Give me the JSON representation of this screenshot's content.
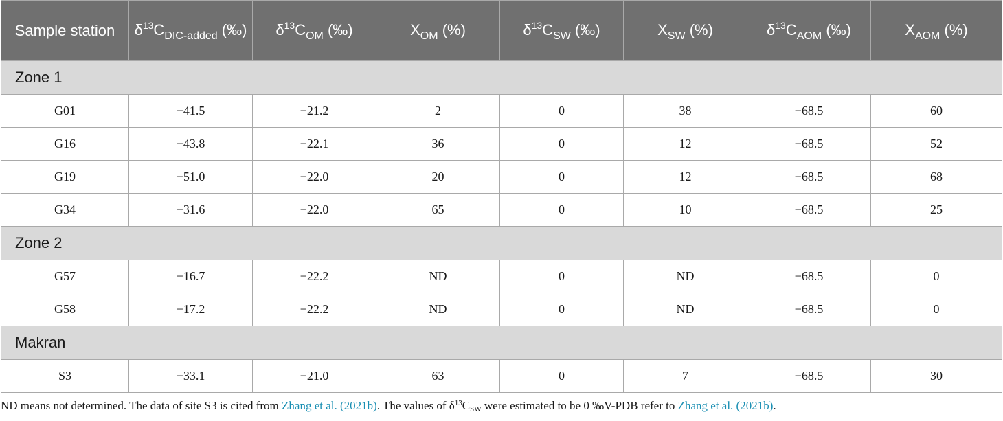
{
  "header": {
    "col1": "Sample station",
    "col2": {
      "pre": "δ",
      "sup": "13",
      "main": "C",
      "sub": "DIC-added",
      "unit": "(‰)"
    },
    "col3": {
      "pre": "δ",
      "sup": "13",
      "main": "C",
      "sub": "OM",
      "unit": "(‰)"
    },
    "col4": {
      "main": "X",
      "sub": "OM",
      "unit": "(%)"
    },
    "col5": {
      "pre": "δ",
      "sup": "13",
      "main": "C",
      "sub": "SW",
      "unit": "(‰)"
    },
    "col6": {
      "main": "X",
      "sub": "SW",
      "unit": "(%)"
    },
    "col7": {
      "pre": "δ",
      "sup": "13",
      "main": "C",
      "sub": "AOM",
      "unit": "(‰)"
    },
    "col8": {
      "main": "X",
      "sub": "AOM",
      "unit": "(%)"
    }
  },
  "zones": [
    {
      "name": "Zone 1",
      "rows": [
        [
          "G01",
          "−41.5",
          "−21.2",
          "2",
          "0",
          "38",
          "−68.5",
          "60"
        ],
        [
          "G16",
          "−43.8",
          "−22.1",
          "36",
          "0",
          "12",
          "−68.5",
          "52"
        ],
        [
          "G19",
          "−51.0",
          "−22.0",
          "20",
          "0",
          "12",
          "−68.5",
          "68"
        ],
        [
          "G34",
          "−31.6",
          "−22.0",
          "65",
          "0",
          "10",
          "−68.5",
          "25"
        ]
      ]
    },
    {
      "name": "Zone 2",
      "rows": [
        [
          "G57",
          "−16.7",
          "−22.2",
          "ND",
          "0",
          "ND",
          "−68.5",
          "0"
        ],
        [
          "G58",
          "−17.2",
          "−22.2",
          "ND",
          "0",
          "ND",
          "−68.5",
          "0"
        ]
      ]
    },
    {
      "name": "Makran",
      "rows": [
        [
          "S3",
          "−33.1",
          "−21.0",
          "63",
          "0",
          "7",
          "−68.5",
          "30"
        ]
      ]
    }
  ],
  "footnote": {
    "part1": "ND means not determined. The data of site S3 is cited from ",
    "link1": "Zhang et al. (2021b)",
    "part2": ". The values of δ",
    "sup": "13",
    "part3": "C",
    "sub": "SW",
    "part4": " were estimated to be 0 ‰V-PDB refer to ",
    "link2": "Zhang et al. (2021b)",
    "part5": ".",
    "link_color": "#1a8fb3"
  },
  "colors": {
    "header_bg": "#707070",
    "zone_bg": "#d9d9d9",
    "border": "#a9a9a9"
  }
}
